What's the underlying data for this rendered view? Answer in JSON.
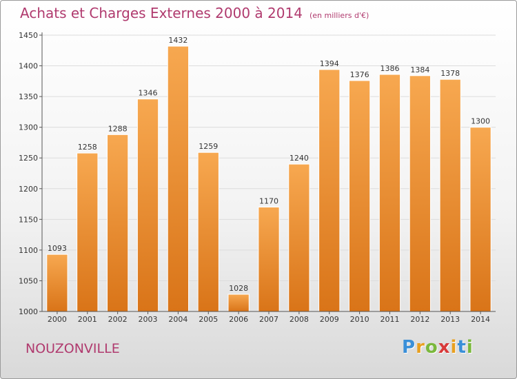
{
  "header": {
    "title": "Achats et Charges Externes 2000 à 2014",
    "subtitle": "(en milliers d'€)"
  },
  "footer": {
    "place": "NOUZONVILLE",
    "logo": {
      "letters": [
        "P",
        "r",
        "o",
        "x",
        "i",
        "t",
        "i"
      ],
      "colors": [
        "#3a8fd8",
        "#e8a020",
        "#7ab83c",
        "#d83a3a",
        "#e8a020",
        "#3a8fd8",
        "#7ab83c"
      ]
    }
  },
  "chart_data": {
    "type": "bar",
    "title": "Achats et Charges Externes 2000 à 2014",
    "subtitle": "(en milliers d'€)",
    "categories": [
      "2000",
      "2001",
      "2002",
      "2003",
      "2004",
      "2005",
      "2006",
      "2007",
      "2008",
      "2009",
      "2010",
      "2011",
      "2012",
      "2013",
      "2014"
    ],
    "values": [
      1093,
      1258,
      1288,
      1346,
      1432,
      1259,
      1028,
      1170,
      1240,
      1394,
      1376,
      1386,
      1384,
      1378,
      1300
    ],
    "ylim": [
      1000,
      1450
    ],
    "yticks": [
      1000,
      1050,
      1100,
      1150,
      1200,
      1250,
      1300,
      1350,
      1400,
      1450
    ],
    "grid": true,
    "legend": "none",
    "bar_color_top": "#f7a850",
    "bar_color_bottom": "#d97418"
  }
}
